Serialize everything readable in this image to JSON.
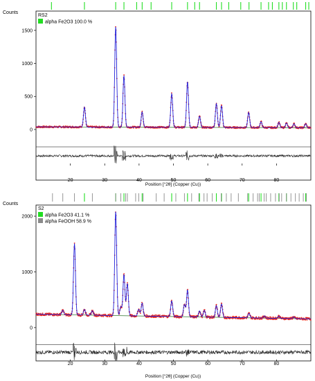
{
  "colors": {
    "obs": "#e8231c",
    "calc": "#1f1fd8",
    "bg": "#3a7d3a",
    "diff": "#222222",
    "hematite": "#22dd22",
    "goethite": "#8a8a8a",
    "frame": "#000000"
  },
  "chart_data": [
    {
      "type": "line",
      "panel": "RS2",
      "ylabel": "Counts",
      "xlabel": "Position [°2θ] (Copper (Cu))",
      "xlim": [
        10,
        90
      ],
      "ylim": [
        -200,
        1750
      ],
      "yticks": [
        0,
        500,
        1000,
        1500
      ],
      "xticks": [
        20,
        30,
        40,
        50,
        60,
        70,
        80
      ],
      "legend": [
        {
          "name": "alpha Fe2O3 100.0 %",
          "color": "#22dd22"
        }
      ],
      "background": 40,
      "series": [
        {
          "name": "",
          "role": "calc",
          "peaks": [
            {
              "x": 24.1,
              "h": 300
            },
            {
              "x": 33.2,
              "h": 1520
            },
            {
              "x": 35.6,
              "h": 780
            },
            {
              "x": 40.9,
              "h": 230
            },
            {
              "x": 49.5,
              "h": 510
            },
            {
              "x": 54.1,
              "h": 690
            },
            {
              "x": 57.6,
              "h": 170
            },
            {
              "x": 62.5,
              "h": 360
            },
            {
              "x": 64.0,
              "h": 330
            },
            {
              "x": 71.9,
              "h": 230
            },
            {
              "x": 75.5,
              "h": 90
            },
            {
              "x": 80.7,
              "h": 80
            },
            {
              "x": 82.9,
              "h": 70
            },
            {
              "x": 85.1,
              "h": 60
            },
            {
              "x": 88.5,
              "h": 60
            }
          ]
        }
      ],
      "reflections_hematite": [
        14.5,
        24.1,
        33.2,
        35.6,
        39.3,
        40.9,
        43.5,
        49.5,
        54.1,
        56.2,
        57.6,
        62.5,
        64.0,
        66.1,
        69.6,
        72.0,
        75.5,
        77.7,
        78.8,
        80.7,
        81.7,
        82.9,
        84.9,
        85.9,
        88.5,
        89.4
      ]
    },
    {
      "type": "line",
      "panel": "S2",
      "ylabel": "Counts",
      "xlabel": "Position [°2θ] (Copper (Cu))",
      "xlim": [
        10,
        90
      ],
      "ylim": [
        -250,
        2150
      ],
      "yticks": [
        0,
        1000,
        2000
      ],
      "xticks": [
        20,
        30,
        40,
        50,
        60,
        70,
        80
      ],
      "legend": [
        {
          "name": "alpha Fe2O3 41.1 %",
          "color": "#22dd22"
        },
        {
          "name": "alpha FeOOH 58.9 %",
          "color": "#8a8a8a"
        }
      ],
      "background": 240,
      "series": [
        {
          "name": "",
          "role": "calc",
          "peaks": [
            {
              "x": 17.8,
              "h": 80
            },
            {
              "x": 21.2,
              "h": 1280
            },
            {
              "x": 24.1,
              "h": 100
            },
            {
              "x": 26.4,
              "h": 80
            },
            {
              "x": 33.2,
              "h": 1870
            },
            {
              "x": 34.7,
              "h": 160
            },
            {
              "x": 35.6,
              "h": 740
            },
            {
              "x": 36.6,
              "h": 580
            },
            {
              "x": 39.9,
              "h": 120
            },
            {
              "x": 40.9,
              "h": 230
            },
            {
              "x": 49.5,
              "h": 280
            },
            {
              "x": 53.2,
              "h": 220
            },
            {
              "x": 54.1,
              "h": 480
            },
            {
              "x": 57.6,
              "h": 110
            },
            {
              "x": 59.0,
              "h": 120
            },
            {
              "x": 62.5,
              "h": 210
            },
            {
              "x": 64.0,
              "h": 240
            },
            {
              "x": 72.0,
              "h": 80
            },
            {
              "x": 76.5,
              "h": 40
            },
            {
              "x": 80.7,
              "h": 40
            },
            {
              "x": 85.0,
              "h": 30
            }
          ]
        }
      ],
      "reflections_goethite": [
        14.8,
        17.8,
        21.2,
        26.4,
        33.2,
        34.7,
        36.1,
        36.6,
        39.0,
        39.9,
        41.2,
        45.0,
        47.3,
        50.7,
        53.2,
        55.3,
        57.4,
        58.9,
        59.8,
        61.3,
        63.9,
        65.4,
        66.8,
        68.9,
        71.6,
        73.2,
        74.5,
        75.0,
        76.4,
        77.0,
        78.3,
        79.7,
        80.8,
        81.5,
        82.9,
        84.2,
        85.5,
        86.6,
        87.8,
        88.7
      ],
      "reflections_hematite": [
        24.1,
        33.2,
        35.6,
        40.9,
        49.5,
        54.1,
        57.6,
        62.5,
        64.0,
        71.9,
        75.5,
        80.7,
        82.9,
        88.5
      ]
    }
  ]
}
